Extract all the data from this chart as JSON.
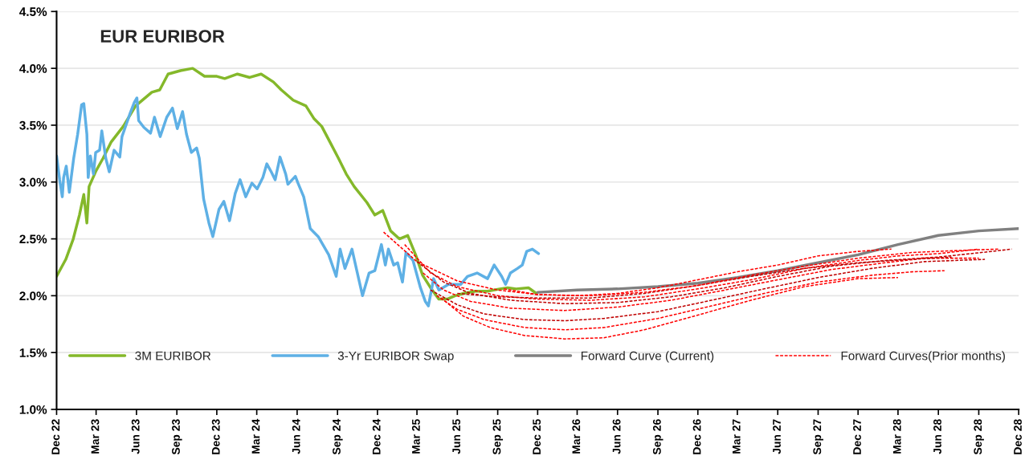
{
  "chart_data": {
    "type": "line",
    "title": "EUR EURIBOR",
    "xlim": [
      "2022-12-01",
      "2028-12-01"
    ],
    "xticks": [
      {
        "value": "2022-12-01",
        "label": "Dec 22"
      },
      {
        "value": "2023-03-01",
        "label": "Mar 23"
      },
      {
        "value": "2023-06-01",
        "label": "Jun 23"
      },
      {
        "value": "2023-09-01",
        "label": "Sep 23"
      },
      {
        "value": "2023-12-01",
        "label": "Dec 23"
      },
      {
        "value": "2024-03-01",
        "label": "Mar 24"
      },
      {
        "value": "2024-06-01",
        "label": "Jun 24"
      },
      {
        "value": "2024-09-01",
        "label": "Sep 24"
      },
      {
        "value": "2024-12-01",
        "label": "Dec 24"
      },
      {
        "value": "2025-03-01",
        "label": "Mar 25"
      },
      {
        "value": "2025-06-01",
        "label": "Jun 25"
      },
      {
        "value": "2025-09-01",
        "label": "Sep 25"
      },
      {
        "value": "2025-12-01",
        "label": "Dec 25"
      },
      {
        "value": "2026-03-01",
        "label": "Mar 26"
      },
      {
        "value": "2026-06-01",
        "label": "Jun 26"
      },
      {
        "value": "2026-09-01",
        "label": "Sep 26"
      },
      {
        "value": "2026-12-01",
        "label": "Dec 26"
      },
      {
        "value": "2027-03-01",
        "label": "Mar 27"
      },
      {
        "value": "2027-06-01",
        "label": "Jun 27"
      },
      {
        "value": "2027-09-01",
        "label": "Sep 27"
      },
      {
        "value": "2027-12-01",
        "label": "Dec 27"
      },
      {
        "value": "2028-03-01",
        "label": "Mar 28"
      },
      {
        "value": "2028-06-01",
        "label": "Jun 28"
      },
      {
        "value": "2028-09-01",
        "label": "Sep 28"
      },
      {
        "value": "2028-12-01",
        "label": "Dec 28"
      }
    ],
    "ylim": [
      1.0,
      4.5
    ],
    "yticks": [
      {
        "value": 1.0,
        "label": "1.0%"
      },
      {
        "value": 1.5,
        "label": "1.5%"
      },
      {
        "value": 2.0,
        "label": "2.0%"
      },
      {
        "value": 2.5,
        "label": "2.5%"
      },
      {
        "value": 3.0,
        "label": "3.0%"
      },
      {
        "value": 3.5,
        "label": "3.5%"
      },
      {
        "value": 4.0,
        "label": "4.0%"
      },
      {
        "value": 4.5,
        "label": "4.5%"
      }
    ],
    "grid": "y",
    "legend": "bottom",
    "series": [
      {
        "name": "3M EURIBOR",
        "color": "#84b82a",
        "line_style": "solid",
        "x": [
          "2022-12-01",
          "2022-12-22",
          "2023-01-08",
          "2023-01-22",
          "2023-02-01",
          "2023-02-08",
          "2023-02-13",
          "2023-03-01",
          "2023-03-17",
          "2023-04-04",
          "2023-05-02",
          "2023-05-30",
          "2023-07-06",
          "2023-07-24",
          "2023-08-12",
          "2023-09-09",
          "2023-10-07",
          "2023-11-03",
          "2023-12-01",
          "2023-12-19",
          "2024-01-17",
          "2024-02-14",
          "2024-03-11",
          "2024-04-08",
          "2024-04-26",
          "2024-05-23",
          "2024-06-21",
          "2024-07-09",
          "2024-07-27",
          "2024-08-15",
          "2024-09-03",
          "2024-09-21",
          "2024-10-09",
          "2024-11-07",
          "2024-11-25",
          "2024-12-13",
          "2024-12-31",
          "2025-01-20",
          "2025-02-08",
          "2025-02-26",
          "2025-03-14",
          "2025-04-01",
          "2025-04-20",
          "2025-05-09",
          "2025-05-27",
          "2025-06-15",
          "2025-07-12",
          "2025-08-09",
          "2025-09-06",
          "2025-09-24",
          "2025-10-13",
          "2025-11-10",
          "2025-11-28"
        ],
        "values": [
          2.17,
          2.32,
          2.5,
          2.71,
          2.89,
          2.64,
          2.96,
          3.1,
          3.21,
          3.35,
          3.49,
          3.67,
          3.79,
          3.81,
          3.95,
          3.98,
          4.0,
          3.93,
          3.93,
          3.91,
          3.95,
          3.92,
          3.95,
          3.88,
          3.81,
          3.72,
          3.67,
          3.56,
          3.49,
          3.35,
          3.21,
          3.07,
          2.96,
          2.82,
          2.71,
          2.75,
          2.57,
          2.5,
          2.53,
          2.36,
          2.18,
          2.07,
          1.97,
          1.97,
          2.0,
          2.02,
          2.04,
          2.04,
          2.06,
          2.07,
          2.06,
          2.07,
          2.02
        ]
      },
      {
        "name": "3-Yr EURIBOR Swap",
        "color": "#5eb0e5",
        "line_style": "solid",
        "x": [
          "2022-12-01",
          "2022-12-08",
          "2022-12-14",
          "2022-12-17",
          "2022-12-23",
          "2022-12-30",
          "2023-01-09",
          "2023-01-18",
          "2023-01-27",
          "2023-02-01",
          "2023-02-08",
          "2023-02-11",
          "2023-02-16",
          "2023-02-23",
          "2023-02-28",
          "2023-03-09",
          "2023-03-14",
          "2023-03-23",
          "2023-03-31",
          "2023-04-11",
          "2023-04-24",
          "2023-04-29",
          "2023-05-09",
          "2023-05-18",
          "2023-05-27",
          "2023-06-02",
          "2023-06-06",
          "2023-06-18",
          "2023-07-03",
          "2023-07-12",
          "2023-07-25",
          "2023-08-09",
          "2023-08-22",
          "2023-09-02",
          "2023-09-14",
          "2023-09-23",
          "2023-10-04",
          "2023-10-16",
          "2023-10-22",
          "2023-11-01",
          "2023-11-13",
          "2023-11-22",
          "2023-12-06",
          "2023-12-17",
          "2023-12-30",
          "2024-01-12",
          "2024-01-23",
          "2024-02-05",
          "2024-02-19",
          "2024-03-02",
          "2024-03-15",
          "2024-03-24",
          "2024-04-03",
          "2024-04-12",
          "2024-04-23",
          "2024-05-06",
          "2024-05-11",
          "2024-05-28",
          "2024-06-03",
          "2024-06-16",
          "2024-07-01",
          "2024-07-19",
          "2024-08-12",
          "2024-08-29",
          "2024-09-07",
          "2024-09-18",
          "2024-10-04",
          "2024-10-15",
          "2024-10-28",
          "2024-11-12",
          "2024-11-25",
          "2024-12-10",
          "2024-12-19",
          "2024-12-26",
          "2025-01-07",
          "2025-01-16",
          "2025-01-27",
          "2025-02-04",
          "2025-02-20",
          "2025-03-09",
          "2025-03-20",
          "2025-03-27",
          "2025-04-08",
          "2025-04-20",
          "2025-05-12",
          "2025-06-09",
          "2025-06-24",
          "2025-07-16",
          "2025-08-09",
          "2025-08-24",
          "2025-09-10",
          "2025-09-19",
          "2025-09-30",
          "2025-10-16",
          "2025-10-27",
          "2025-11-06",
          "2025-11-19",
          "2025-12-03"
        ],
        "values": [
          3.23,
          3.02,
          2.87,
          3.04,
          3.14,
          2.91,
          3.21,
          3.42,
          3.68,
          3.69,
          3.42,
          3.04,
          3.23,
          3.07,
          3.26,
          3.28,
          3.45,
          3.21,
          3.09,
          3.28,
          3.22,
          3.4,
          3.51,
          3.61,
          3.7,
          3.74,
          3.54,
          3.48,
          3.43,
          3.57,
          3.4,
          3.57,
          3.65,
          3.47,
          3.62,
          3.42,
          3.26,
          3.3,
          3.21,
          2.85,
          2.64,
          2.52,
          2.76,
          2.83,
          2.66,
          2.9,
          3.02,
          2.87,
          2.99,
          2.94,
          3.04,
          3.16,
          3.09,
          3.02,
          3.22,
          3.07,
          2.98,
          3.05,
          2.99,
          2.87,
          2.59,
          2.52,
          2.36,
          2.17,
          2.41,
          2.24,
          2.41,
          2.22,
          2.0,
          2.2,
          2.22,
          2.45,
          2.27,
          2.41,
          2.27,
          2.29,
          2.12,
          2.38,
          2.31,
          2.07,
          1.95,
          1.91,
          2.15,
          2.05,
          2.1,
          2.1,
          2.17,
          2.2,
          2.15,
          2.27,
          2.17,
          2.1,
          2.2,
          2.24,
          2.27,
          2.39,
          2.41,
          2.37
        ]
      },
      {
        "name": "Forward Curve (Current)",
        "color": "#808080",
        "line_style": "solid",
        "x": [
          "2025-12-01",
          "2026-03-01",
          "2026-06-01",
          "2026-09-01",
          "2026-12-01",
          "2027-03-01",
          "2027-06-01",
          "2027-09-01",
          "2027-12-01",
          "2028-03-01",
          "2028-06-01",
          "2028-09-01",
          "2028-12-01"
        ],
        "values": [
          2.03,
          2.05,
          2.06,
          2.08,
          2.11,
          2.16,
          2.22,
          2.29,
          2.36,
          2.45,
          2.53,
          2.57,
          2.59
        ]
      },
      {
        "name": "Forward Curves(Prior months)",
        "color": "#ff0000",
        "line_style": "dashed",
        "x": [
          "2024-12-15",
          "2025-03-01",
          "2025-06-01",
          "2025-09-01",
          "2025-12-01",
          "2026-03-01",
          "2026-06-01",
          "2026-09-01",
          "2026-12-01",
          "2027-03-01",
          "2027-06-01",
          "2027-09-01",
          "2027-12-01",
          "2028-02-15"
        ],
        "values": [
          2.56,
          2.3,
          2.13,
          2.05,
          2.01,
          2.0,
          2.02,
          2.07,
          2.14,
          2.21,
          2.27,
          2.35,
          2.39,
          2.41
        ]
      },
      {
        "color": "#ff0000",
        "line_style": "dashed",
        "x": [
          "2025-02-01",
          "2025-04-01",
          "2025-06-01",
          "2025-09-01",
          "2025-12-01",
          "2026-04-01",
          "2026-08-01",
          "2026-12-01",
          "2027-04-01",
          "2027-08-01",
          "2027-12-01",
          "2028-03-01",
          "2028-06-01",
          "2028-09-01"
        ],
        "values": [
          2.45,
          2.2,
          2.08,
          2.0,
          1.97,
          1.96,
          1.99,
          2.06,
          2.14,
          2.24,
          2.31,
          2.35,
          2.37,
          2.41
        ]
      },
      {
        "color": "#c00000",
        "line_style": "dashed",
        "x": [
          "2025-03-01",
          "2025-05-01",
          "2025-07-01",
          "2025-10-01",
          "2026-02-01",
          "2026-06-01",
          "2026-10-01",
          "2027-02-01",
          "2027-06-01",
          "2027-10-01",
          "2028-02-01",
          "2028-06-01",
          "2028-10-01",
          "2028-11-15"
        ],
        "values": [
          2.3,
          2.12,
          2.02,
          1.96,
          1.93,
          1.94,
          1.99,
          2.07,
          2.17,
          2.26,
          2.31,
          2.34,
          2.39,
          2.41
        ]
      },
      {
        "color": "#ff0000",
        "line_style": "dashed",
        "x": [
          "2025-03-15",
          "2025-05-01",
          "2025-07-01",
          "2025-10-01",
          "2026-02-01",
          "2026-06-01",
          "2026-10-01",
          "2027-02-01",
          "2027-06-01",
          "2027-10-01",
          "2028-02-01",
          "2028-05-01",
          "2028-09-01"
        ],
        "values": [
          2.2,
          2.05,
          1.95,
          1.89,
          1.87,
          1.9,
          1.96,
          2.05,
          2.14,
          2.23,
          2.29,
          2.33,
          2.33
        ]
      },
      {
        "color": "#c00000",
        "line_style": "dashed",
        "x": [
          "2025-04-01",
          "2025-06-01",
          "2025-08-01",
          "2025-11-01",
          "2026-02-01",
          "2026-05-01",
          "2026-09-01",
          "2027-01-01",
          "2027-05-01",
          "2027-09-01",
          "2028-01-01",
          "2028-05-01",
          "2028-09-15"
        ],
        "values": [
          2.05,
          1.92,
          1.84,
          1.79,
          1.78,
          1.8,
          1.86,
          1.96,
          2.06,
          2.16,
          2.24,
          2.3,
          2.32
        ]
      },
      {
        "color": "#ff0000",
        "line_style": "dashed",
        "x": [
          "2025-04-15",
          "2025-06-01",
          "2025-08-01",
          "2025-11-01",
          "2026-02-01",
          "2026-05-01",
          "2026-09-01",
          "2027-01-01",
          "2027-05-01",
          "2027-09-01",
          "2028-01-01",
          "2028-04-01",
          "2028-06-15"
        ],
        "values": [
          2.0,
          1.88,
          1.79,
          1.72,
          1.7,
          1.72,
          1.8,
          1.91,
          2.02,
          2.12,
          2.18,
          2.21,
          2.22
        ]
      },
      {
        "color": "#ff0000",
        "line_style": "dashed",
        "x": [
          "2025-04-25",
          "2025-06-15",
          "2025-08-15",
          "2025-11-01",
          "2026-02-01",
          "2026-05-01",
          "2026-08-01",
          "2026-12-01",
          "2027-04-01",
          "2027-08-01",
          "2027-12-01",
          "2028-03-01"
        ],
        "values": [
          1.98,
          1.82,
          1.72,
          1.65,
          1.62,
          1.63,
          1.7,
          1.83,
          1.96,
          2.08,
          2.15,
          2.16
        ]
      },
      {
        "color": "#c00000",
        "line_style": "dashed",
        "x": [
          "2025-06-01",
          "2025-09-01",
          "2025-12-01",
          "2026-04-01",
          "2026-08-01",
          "2026-12-01",
          "2027-04-01",
          "2027-08-01",
          "2027-12-01",
          "2028-04-01",
          "2028-07-01"
        ],
        "values": [
          2.02,
          1.99,
          1.98,
          1.98,
          2.02,
          2.09,
          2.17,
          2.24,
          2.29,
          2.32,
          2.34
        ]
      },
      {
        "color": "#ff0000",
        "line_style": "dashed",
        "x": [
          "2025-09-15",
          "2025-12-01",
          "2026-04-01",
          "2026-08-01",
          "2026-12-01",
          "2027-04-01",
          "2027-08-01",
          "2027-12-01",
          "2028-04-01",
          "2028-08-01",
          "2028-10-15"
        ],
        "values": [
          2.06,
          2.01,
          2.0,
          2.03,
          2.09,
          2.18,
          2.26,
          2.33,
          2.38,
          2.4,
          2.41
        ]
      }
    ]
  }
}
